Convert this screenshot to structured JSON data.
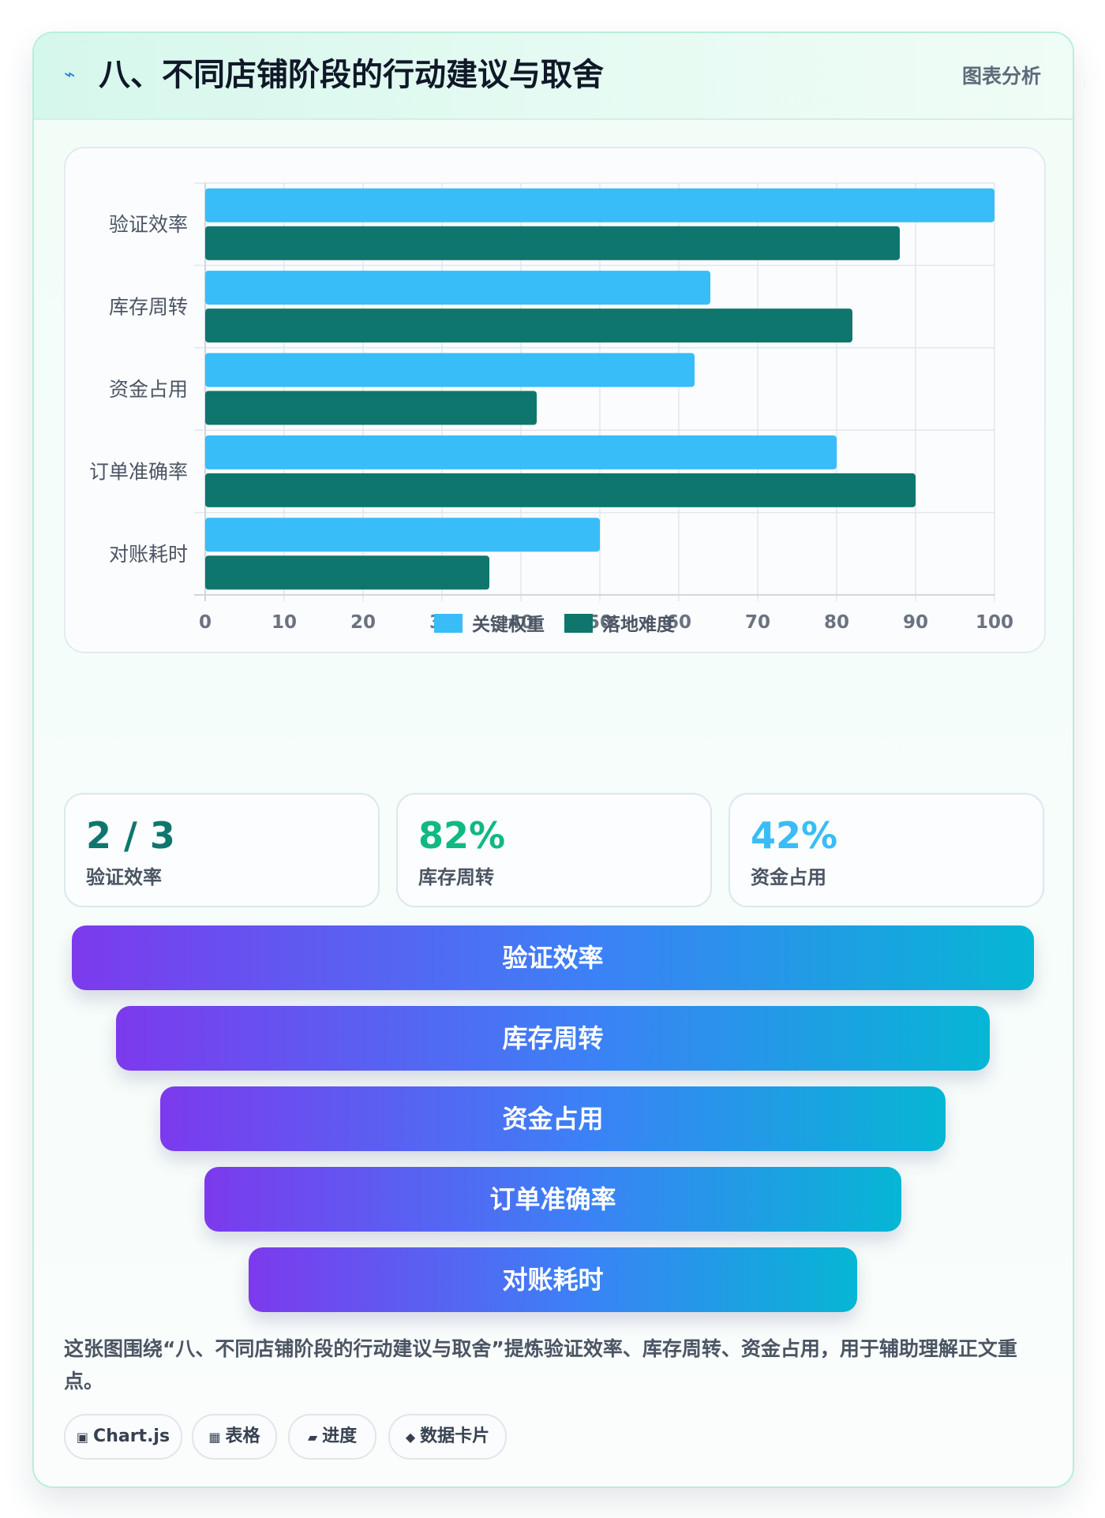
{
  "header": {
    "icon": "lightning-icon",
    "icon_glyph": "⌁",
    "title": "八、不同店铺阶段的行动建议与取舍",
    "tag": "图表分析"
  },
  "colors": {
    "series_1": "#38bdf8",
    "series_2": "#0f766e",
    "stat_1": "#0f766e",
    "stat_2": "#10b981",
    "stat_3": "#38bdf8",
    "funnel_start": "#7c3aed",
    "funnel_end": "#06b6d4"
  },
  "chart_data": {
    "type": "bar",
    "orientation": "horizontal",
    "categories": [
      "验证效率",
      "库存周转",
      "资金占用",
      "订单准确率",
      "对账耗时"
    ],
    "series": [
      {
        "name": "关键权重",
        "values": [
          100,
          64,
          62,
          80,
          50
        ]
      },
      {
        "name": "落地难度",
        "values": [
          88,
          82,
          42,
          90,
          36
        ]
      }
    ],
    "xlim": [
      0,
      100
    ],
    "x_ticks": [
      "0",
      "10",
      "20",
      "30",
      "40",
      "50",
      "60",
      "70",
      "80",
      "90",
      "100"
    ],
    "grid": true,
    "legend_position": "bottom"
  },
  "stats": [
    {
      "value": "2 / 3",
      "label": "验证效率"
    },
    {
      "value": "82%",
      "label": "库存周转"
    },
    {
      "value": "42%",
      "label": "资金占用"
    }
  ],
  "funnel": [
    "验证效率",
    "库存周转",
    "资金占用",
    "订单准确率",
    "对账耗时"
  ],
  "caption": "这张图围绕“八、不同店铺阶段的行动建议与取舍”提炼验证效率、库存周转、资金占用，用于辅助理解正文重点。",
  "chips": [
    {
      "icon": "chart-icon",
      "glyph": "▣",
      "label": "Chart.js"
    },
    {
      "icon": "table-icon",
      "glyph": "▦",
      "label": "表格"
    },
    {
      "icon": "progress-icon",
      "glyph": "▰",
      "label": "进度"
    },
    {
      "icon": "data-card-icon",
      "glyph": "◆",
      "label": "数据卡片"
    }
  ]
}
